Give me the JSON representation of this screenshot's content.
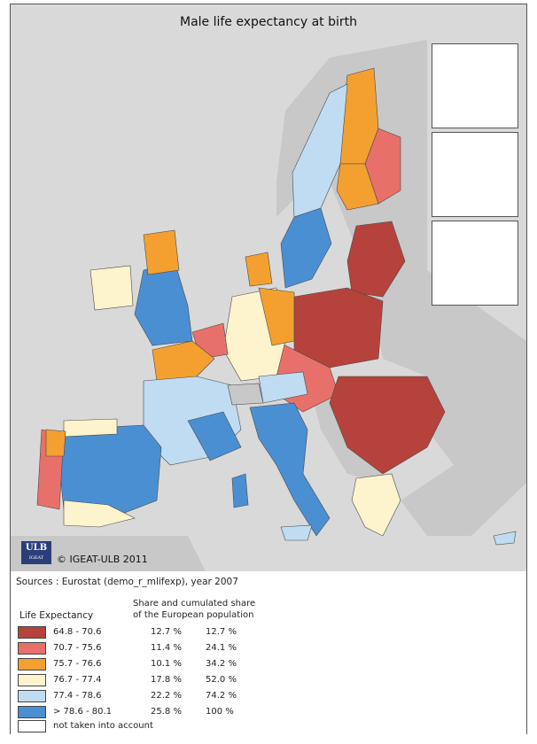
{
  "map": {
    "title": "Male life expectancy at birth",
    "copyright": "© IGEAT-ULB 2011",
    "logo": {
      "text": "ULB",
      "subtext": "IGEAT"
    },
    "colors": {
      "sea": "#d9d9d9",
      "non_eu_land": "#c8c8c8",
      "border": "#4a4a4a"
    }
  },
  "legend": {
    "sources": "Sources : Eurostat (demo_r_mlifexp), year 2007",
    "title": "Life Expectancy",
    "share_header_line1": "Share and cumulated share",
    "share_header_line2": "of the European population",
    "classes": [
      {
        "range": "64.8 - 70.6",
        "share": "12.7 %",
        "cumulated": "12.7 %",
        "color": "#b5433b"
      },
      {
        "range": "70.7 - 75.6",
        "share": "11.4 %",
        "cumulated": "24.1 %",
        "color": "#e8706a"
      },
      {
        "range": "75.7 - 76.6",
        "share": "10.1 %",
        "cumulated": "34.2 %",
        "color": "#f3a030"
      },
      {
        "range": "76.7 - 77.4",
        "share": "17.8 %",
        "cumulated": "52.0 %",
        "color": "#fdf3cc"
      },
      {
        "range": "77.4 - 78.6",
        "share": "22.2 %",
        "cumulated": "74.2 %",
        "color": "#bfdcf2"
      },
      {
        "range": "> 78.6 - 80.1",
        "share": "25.8 %",
        "cumulated": "100 %",
        "color": "#4a8fd2"
      },
      {
        "range": "not taken into account",
        "share": "",
        "cumulated": "",
        "color": "#ffffff"
      }
    ]
  }
}
